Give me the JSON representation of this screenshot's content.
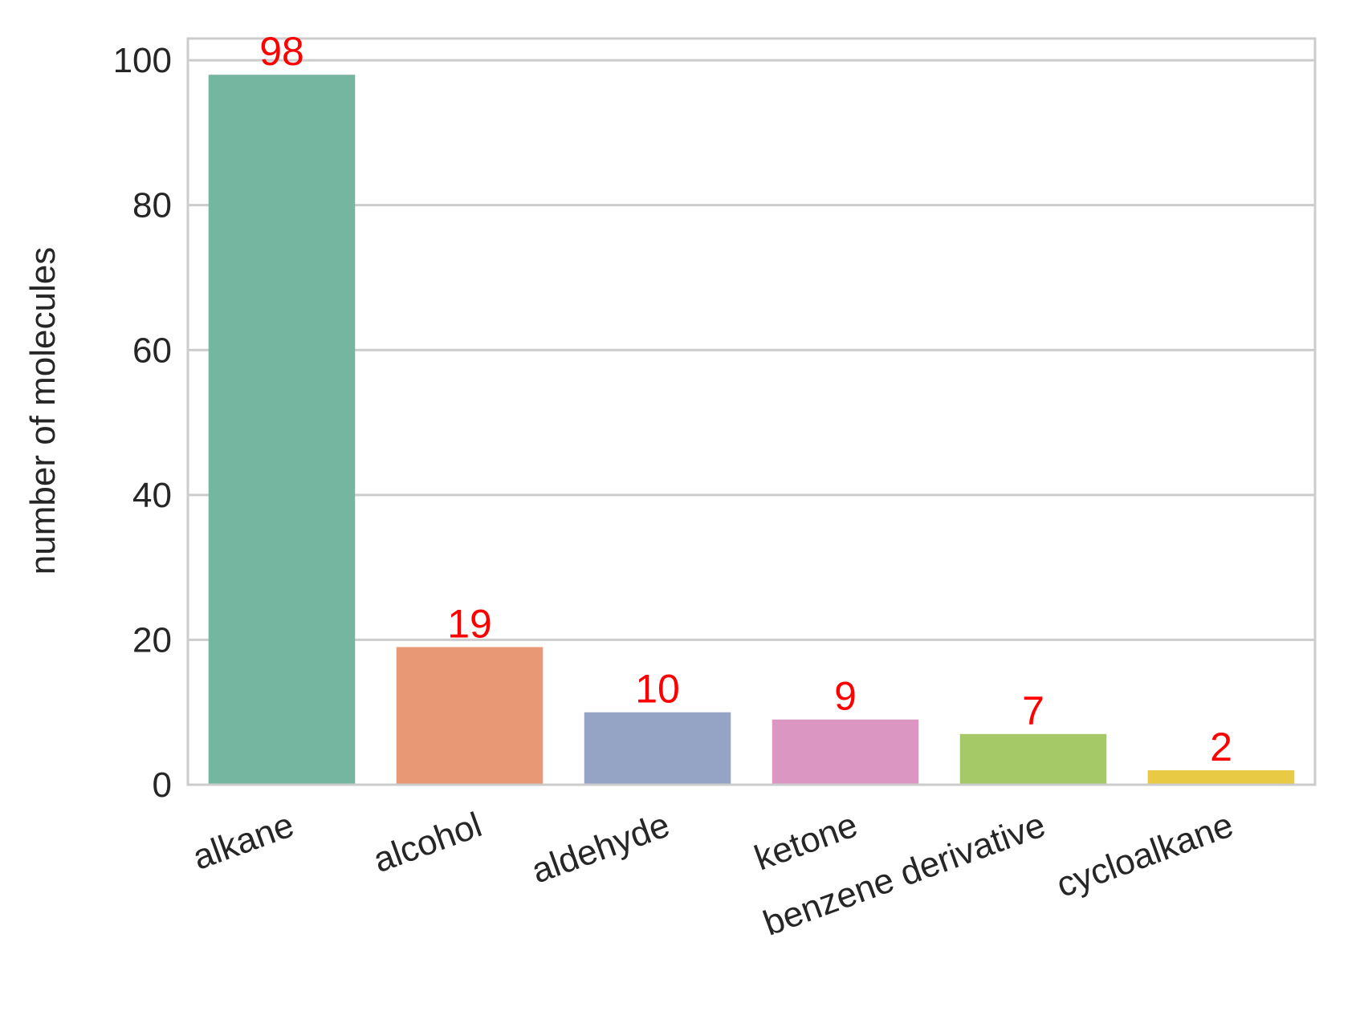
{
  "chart_data": {
    "type": "bar",
    "categories": [
      "alkane",
      "alcohol",
      "aldehyde",
      "ketone",
      "benzene derivative",
      "cycloalkane"
    ],
    "values": [
      98,
      19,
      10,
      9,
      7,
      2
    ],
    "data_labels": [
      "98",
      "19",
      "10",
      "9",
      "7",
      "2"
    ],
    "colors": [
      "#75b6a0",
      "#e99876",
      "#95a4c4",
      "#db97c1",
      "#a4c966",
      "#e9ca44"
    ],
    "data_label_color": "#ff0000",
    "title": "",
    "xlabel": "",
    "ylabel": "number of molecules",
    "ylim": [
      0,
      103
    ],
    "yticks": [
      0,
      20,
      40,
      60,
      80,
      100
    ],
    "ytick_labels": [
      "0",
      "20",
      "40",
      "60",
      "80",
      "100"
    ],
    "xtick_rotation": -20,
    "grid": "horizontal",
    "legend": "none"
  }
}
